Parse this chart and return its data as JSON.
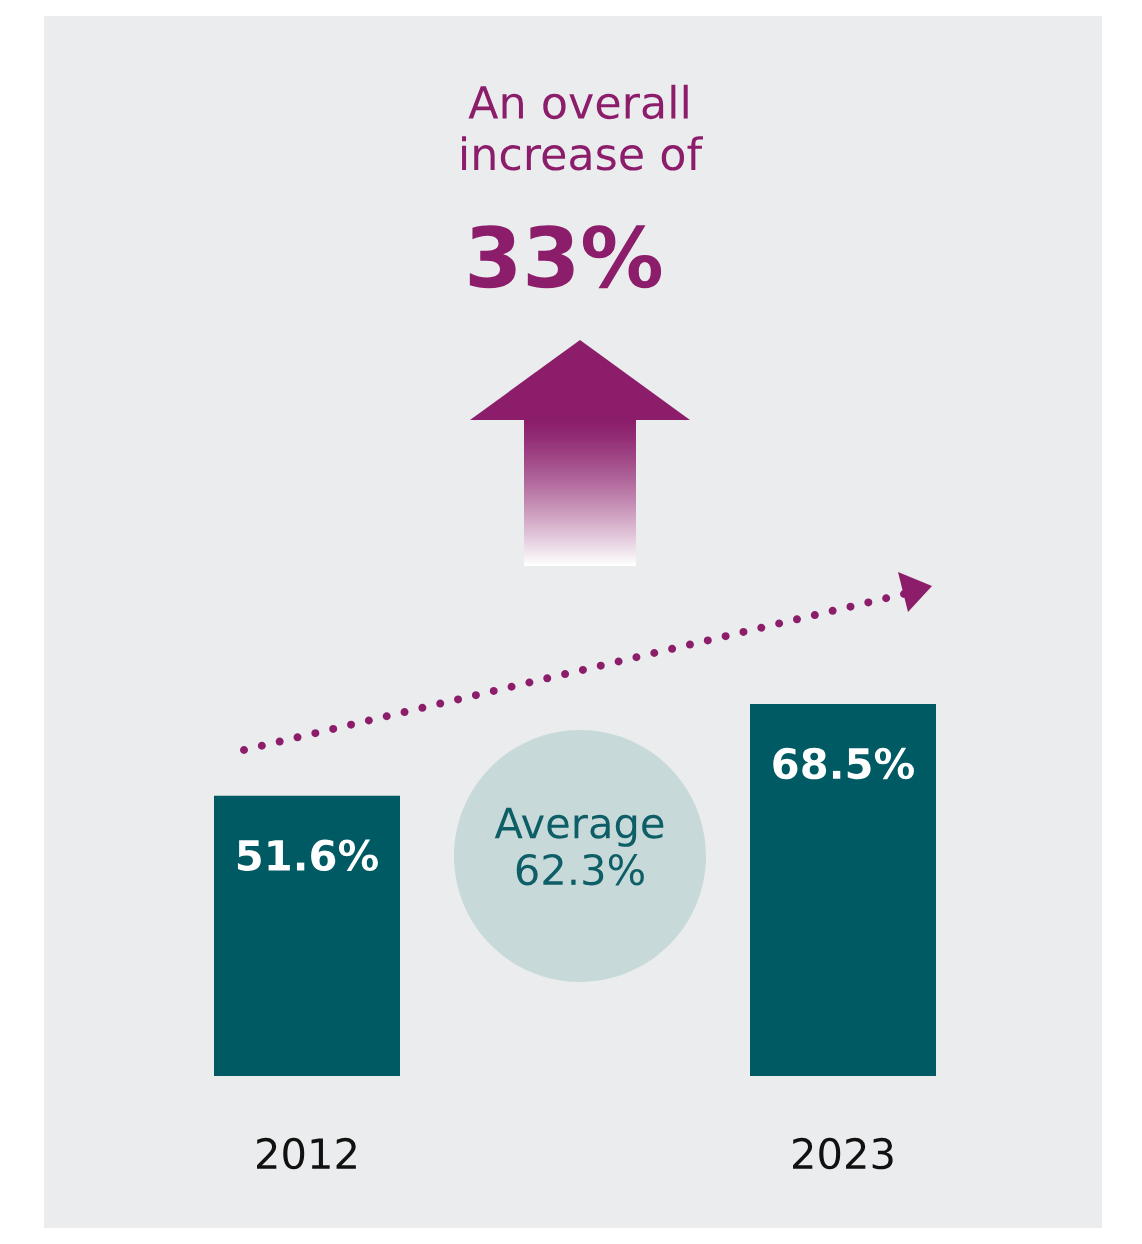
{
  "chart_data": {
    "type": "bar",
    "title": "An overall\nincrease of",
    "subtitle": "33%",
    "categories": [
      "2012",
      "2023"
    ],
    "values": [
      51.6,
      68.5
    ],
    "color": "#005a63",
    "value_labels": [
      "51.6%",
      "68.5%"
    ],
    "annotations": [
      "Average\n62.3%"
    ]
  }
}
